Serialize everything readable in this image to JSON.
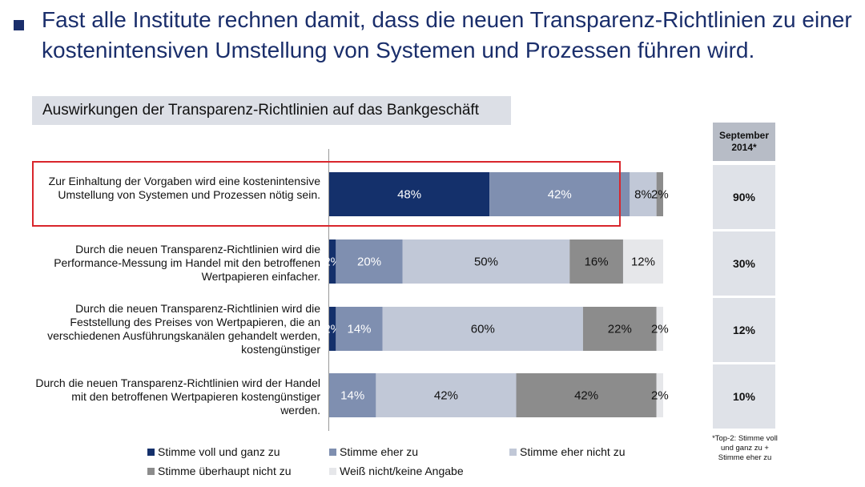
{
  "header": {
    "headline": "Fast alle Institute rechnen damit, dass die neuen Transparenz-Richtlinien zu einer kostenintensiven Umstellung von Systemen und Prozessen führen wird.",
    "subtitle": "Auswirkungen der Transparenz-Richtlinien auf das Bankgeschäft"
  },
  "colors": {
    "accent": "#1a2e6b",
    "highlight_border": "#d9262c"
  },
  "chart_data": {
    "type": "bar",
    "orientation": "horizontal",
    "stacked": true,
    "title": "Auswirkungen der Transparenz-Richtlinien auf das Bankgeschäft",
    "categories": [
      "Zur Einhaltung der Vorgaben wird eine kostenintensive Umstellung von Systemen und Prozessen nötig sein.",
      "Durch die neuen Transparenz-Richtlinien wird die Performance-Messung im Handel mit den betroffenen Wertpapieren einfacher.",
      "Durch die neuen Transparenz-Richtlinien wird die Feststellung des Preises von Wertpapieren, die an verschiedenen Ausführungskanälen gehandelt werden, kostengünstiger",
      "Durch die neuen Transparenz-Richtlinien wird der Handel mit den betroffenen Wertpapieren kostengünstiger werden."
    ],
    "series": [
      {
        "name": "Stimme voll und ganz zu",
        "color": "#14306b",
        "text_color": "#ffffff",
        "values": [
          48,
          2,
          2,
          0
        ]
      },
      {
        "name": "Stimme eher zu",
        "color": "#7f8fb0",
        "text_color": "#ffffff",
        "values": [
          42,
          20,
          14,
          14
        ]
      },
      {
        "name": "Stimme eher nicht zu",
        "color": "#c1c8d7",
        "text_color": "#111111",
        "values": [
          8,
          50,
          60,
          42
        ]
      },
      {
        "name": "Stimme überhaupt nicht zu",
        "color": "#8c8c8c",
        "text_color": "#111111",
        "values": [
          2,
          16,
          22,
          42
        ]
      },
      {
        "name": "Weiß nicht/keine Angabe",
        "color": "#e6e7ea",
        "text_color": "#111111",
        "values": [
          0,
          12,
          2,
          2
        ]
      }
    ],
    "unit": "%",
    "xlim": [
      0,
      100
    ],
    "legend_position": "bottom",
    "highlighted_category_index": 0
  },
  "top2": {
    "header": "September 2014*",
    "values": [
      "90%",
      "30%",
      "12%",
      "10%"
    ],
    "note": "*Top-2: Stimme voll und ganz zu + Stimme eher zu"
  }
}
